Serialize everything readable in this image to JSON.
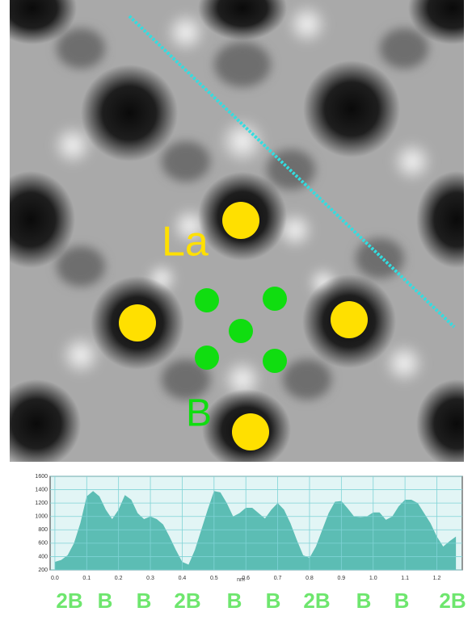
{
  "image": {
    "labels": [
      "La",
      "B"
    ]
  },
  "chart_data": {
    "type": "area",
    "x_label": "nm",
    "x": [
      0,
      0.02,
      0.04,
      0.06,
      0.08,
      0.1,
      0.12,
      0.14,
      0.16,
      0.18,
      0.2,
      0.22,
      0.24,
      0.26,
      0.28,
      0.3,
      0.32,
      0.34,
      0.36,
      0.38,
      0.4,
      0.42,
      0.44,
      0.46,
      0.48,
      0.5,
      0.52,
      0.54,
      0.56,
      0.58,
      0.6,
      0.62,
      0.64,
      0.66,
      0.68,
      0.7,
      0.72,
      0.74,
      0.76,
      0.78,
      0.8,
      0.82,
      0.84,
      0.86,
      0.88,
      0.9,
      0.92,
      0.94,
      0.96,
      0.98,
      1.0,
      1.02,
      1.04,
      1.06,
      1.08,
      1.1,
      1.12,
      1.14,
      1.16,
      1.18,
      1.2,
      1.22,
      1.24,
      1.26
    ],
    "values": [
      320,
      350,
      420,
      600,
      900,
      1300,
      1380,
      1300,
      1100,
      960,
      1100,
      1320,
      1250,
      1050,
      960,
      1000,
      960,
      880,
      700,
      500,
      320,
      280,
      500,
      800,
      1100,
      1380,
      1360,
      1200,
      1000,
      1050,
      1130,
      1130,
      1050,
      970,
      1100,
      1200,
      1100,
      900,
      650,
      420,
      380,
      550,
      800,
      1050,
      1220,
      1230,
      1120,
      1000,
      990,
      1000,
      1060,
      1060,
      950,
      1000,
      1150,
      1250,
      1250,
      1200,
      1050,
      900,
      700,
      550,
      630,
      700
    ],
    "color": "#5cbdb4",
    "xlim": [
      -0.015,
      1.28
    ],
    "ylim": [
      200,
      1600
    ],
    "xticks": [
      {
        "value": 0,
        "label": "0.0"
      },
      0.1,
      0.2,
      0.3,
      0.4,
      0.5,
      0.6,
      0.7,
      0.8,
      0.9,
      {
        "value": 1,
        "label": "1.0"
      },
      1.1,
      1.2
    ],
    "yticks": [
      200,
      400,
      600,
      800,
      1000,
      1200,
      1400,
      1600
    ],
    "grid": true,
    "annotations": [
      "2B",
      "B",
      "B",
      "2B",
      "B",
      "B",
      "2B",
      "B",
      "B",
      "2B"
    ]
  }
}
